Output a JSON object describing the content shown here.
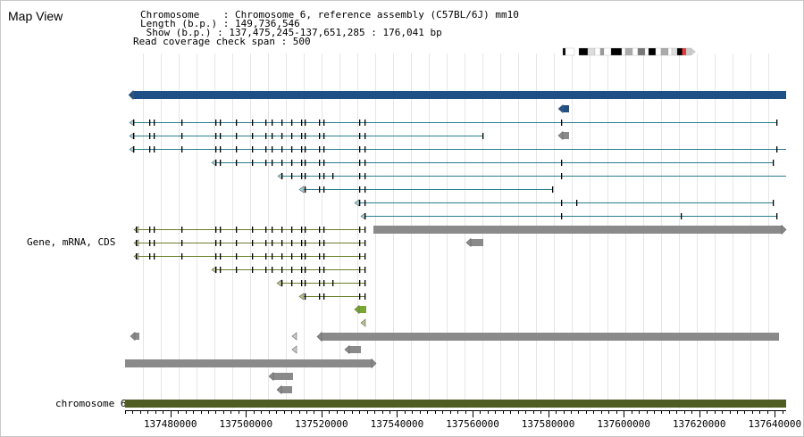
{
  "app": {
    "title": "Map View"
  },
  "header": {
    "line1": "Chromosome    : Chromosome 6, reference assembly (C57BL/6J) mm10",
    "line2": "Length (b.p.) : 149,736,546",
    "line3": " Show (b.p.) : 137,475,245-137,651,285 : 176,041 bp",
    "line4": "Read coverage check span : 500"
  },
  "labels": {
    "gene_track": "Gene, mRNA, CDS",
    "chromosome_track": "chromosome 6"
  },
  "axis": {
    "start_bp": 137468000,
    "end_bp": 137643000,
    "ticks": [
      "137480000",
      "137500000",
      "137520000",
      "137540000",
      "137560000",
      "137580000",
      "137600000",
      "137620000",
      "137640000"
    ]
  },
  "colors": {
    "gene": "#1e4f85",
    "mrna": "#2a7e8c",
    "cds": "#6b7f2a",
    "gray_feature": "#8a8a8a",
    "chromosome_bar": "#4f5d22",
    "grid": "#e6e6e6"
  },
  "icons": {
    "chromosome_ideogram": "chromosome-ideogram-icon"
  }
}
